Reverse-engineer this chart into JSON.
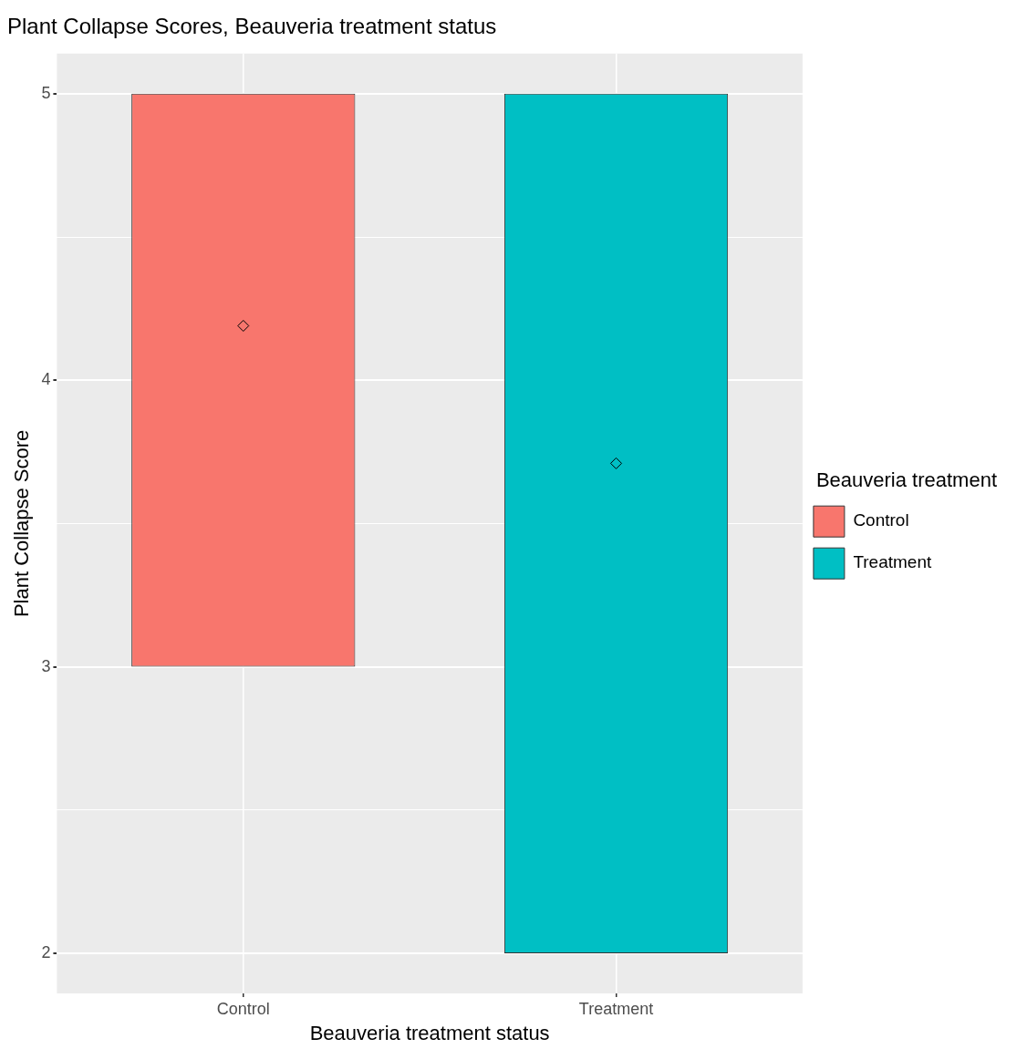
{
  "chart_data": {
    "type": "bar",
    "title": "Plant Collapse Scores, Beauveria treatment status",
    "xlabel": "Beauveria treatment status",
    "ylabel": "Plant Collapse Score",
    "legend_title": "Beauveria treatment",
    "categories": [
      "Control",
      "Treatment"
    ],
    "ylim": [
      1.86,
      5.14
    ],
    "yticks": [
      {
        "value": 2,
        "label": "2"
      },
      {
        "value": 2.5,
        "label": null
      },
      {
        "value": 3,
        "label": "3"
      },
      {
        "value": 3.5,
        "label": null
      },
      {
        "value": 4,
        "label": "4"
      },
      {
        "value": 4.5,
        "label": null
      },
      {
        "value": 5,
        "label": "5"
      }
    ],
    "grid": true,
    "legend": "right",
    "series": [
      {
        "name": "Control",
        "color": "#f8766d",
        "values": [
          2,
          null
        ],
        "base": [
          3,
          null
        ]
      },
      {
        "name": "Treatment",
        "color": "#00bfc4",
        "values": [
          null,
          3
        ],
        "base": [
          null,
          2
        ]
      },
      {
        "type": "scatter",
        "marker": "diamond",
        "color": "#000000",
        "x": [
          "Control",
          "Treatment"
        ],
        "values": [
          4.19,
          3.71
        ]
      }
    ]
  }
}
